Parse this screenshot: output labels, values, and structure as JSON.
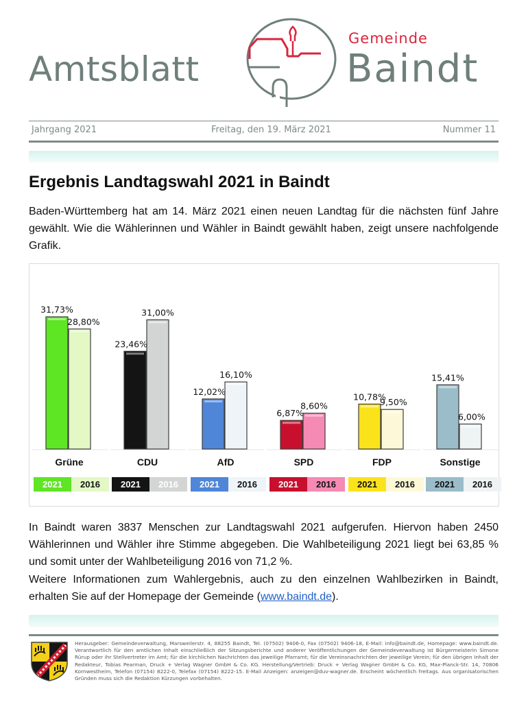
{
  "masthead": {
    "title": "Amtsblatt",
    "municipality_prefix": "Gemeinde",
    "municipality": "Baindt",
    "logo_icon": "church-circle-logo-icon"
  },
  "infobar": {
    "volume": "Jahrgang 2021",
    "date": "Freitag, den 19. März 2021",
    "issue": "Nummer 11"
  },
  "article": {
    "heading": "Ergebnis Landtagswahl 2021 in Baindt",
    "intro": "Baden-Württemberg hat am 14. März 2021 einen neuen Landtag für die nächsten fünf Jahre gewählt. Wie die Wählerinnen und Wähler in Baindt gewählt haben, zeigt unsere nachfolgende Grafik.",
    "turnout_text": "In Baindt waren 3837 Menschen zur Landtagswahl 2021 aufgerufen. Hiervon haben 2450 Wählerinnen und Wähler ihre Stimme abgegeben. Die Wahlbeteiligung 2021 liegt bei 63,85 % und somit unter der Wahlbeteiligung 2016 von 71,2 %.",
    "more_info_prefix": "Weitere Informationen zum Wahlergebnis, auch zu den einzelnen Wahlbezirken in Baindt, erhalten Sie auf der Homepage der Gemeinde (",
    "more_info_link": "www.baindt.de",
    "more_info_suffix": ")."
  },
  "chart_data": {
    "type": "bar",
    "title": "",
    "xlabel": "",
    "ylabel": "",
    "ylim": [
      0,
      35
    ],
    "grid": false,
    "legend_placement": "bottom",
    "categories": [
      "Grüne",
      "CDU",
      "AfD",
      "SPD",
      "FDP",
      "Sonstige"
    ],
    "series": [
      {
        "name": "2021",
        "values": [
          31.73,
          23.46,
          12.02,
          6.87,
          10.78,
          15.41
        ],
        "labels": [
          "31,73%",
          "23,46%",
          "12,02%",
          "6,87%",
          "10,78%",
          "15,41%"
        ]
      },
      {
        "name": "2016",
        "values": [
          28.8,
          31.0,
          16.1,
          8.6,
          9.5,
          6.0
        ],
        "labels": [
          "28,80%",
          "31,00%",
          "16,10%",
          "8,60%",
          "9,50%",
          "6,00%"
        ]
      }
    ],
    "colors_2021": [
      "#5ee524",
      "#141414",
      "#4f86d8",
      "#c8102e",
      "#fbe31c",
      "#9bbcc9"
    ],
    "colors_2016": [
      "#e3f8c5",
      "#d3d5d4",
      "#eef4f8",
      "#f58ab5",
      "#fdf9d8",
      "#eef3f4"
    ],
    "legend_text_2021": [
      "#ffffff",
      "#ffffff",
      "#ffffff",
      "#ffffff",
      "#111111",
      "#111111"
    ],
    "legend_text_2016": [
      "#111111",
      "#ffffff",
      "#111111",
      "#111111",
      "#111111",
      "#111111"
    ]
  },
  "footer": {
    "crest_icon": "coat-of-arms-icon",
    "imprint": "Herausgeber: Gemeindeverwaltung, Marsweilerstr. 4, 88255 Baindt, Tel. (07502) 9406-0, Fax (07502) 9406-18, E-Mail: info@baindt.de, Homepage: www.baindt.de. Verantwortlich für den amtlichen Inhalt einschließlich der Sitzungsberichte und anderer Veröffentlichungen der Gemeindeverwaltung ist Bürgermeisterin Simone Rürup oder ihr Stellvertreter im Amt; für die kirchlichen Nachrichten das jeweilige Pfarramt; für die Vereinsnachrichten der jeweilige Verein; für den übrigen Inhalt der Redakteur, Tobias Pearman, Druck + Verlag Wagner GmbH & Co. KG. Herstellung/Vertrieb: Druck + Verlag Wagner GmbH & Co. KG, Max-Planck-Str. 14, 70806 Kornwestheim, Telefon (07154) 8222-0, Telefax (07154) 8222-15. E-Mail Anzeigen: anzeigen@duv-wagner.de. Erscheint wöchentlich freitags. Aus organisatorischen Gründen muss sich die Redaktion Kürzungen vorbehalten."
  }
}
